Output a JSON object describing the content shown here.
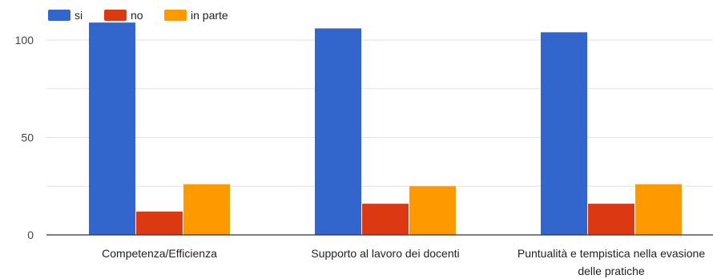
{
  "chart_data": {
    "type": "bar",
    "categories": [
      [
        "Competenza/Efficienza"
      ],
      [
        "Supporto al lavoro dei docenti"
      ],
      [
        "Puntualità e tempistica nella evasione",
        "delle pratiche"
      ]
    ],
    "series": [
      {
        "name": "si",
        "color": "#3366cc",
        "values": [
          109,
          106,
          104
        ]
      },
      {
        "name": "no",
        "color": "#dc3912",
        "values": [
          12,
          16,
          16
        ]
      },
      {
        "name": "in parte",
        "color": "#ff9900",
        "values": [
          26,
          25,
          26
        ]
      }
    ],
    "yticks": [
      0,
      50,
      100
    ],
    "ylim": [
      0,
      110
    ],
    "grid": true,
    "legend_position": "top-left",
    "title": "",
    "xlabel": "",
    "ylabel": ""
  }
}
